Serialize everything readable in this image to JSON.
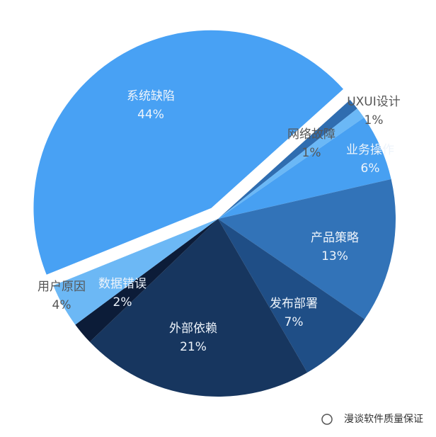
{
  "chart_data": {
    "type": "pie",
    "categories": [
      "UXUI设计",
      "网络故障",
      "业务操作",
      "产品策略",
      "发布部署",
      "外部依赖",
      "数据错误",
      "用户原因",
      "系统缺陷"
    ],
    "values": [
      1,
      1,
      6,
      13,
      7,
      21,
      2,
      4,
      44
    ],
    "value_labels": [
      "1%",
      "1%",
      "6%",
      "13%",
      "7%",
      "21%",
      "2%",
      "4%",
      "44%"
    ],
    "colors": [
      "#2f6db0",
      "#6bb8f6",
      "#47a0f2",
      "#3273b8",
      "#1f4e86",
      "#17365f",
      "#0c1c38",
      "#6cb8f5",
      "#48a1f4"
    ],
    "exploded": [
      false,
      false,
      false,
      false,
      false,
      false,
      false,
      false,
      true
    ]
  },
  "watermark": "漫谈软件质量保证"
}
